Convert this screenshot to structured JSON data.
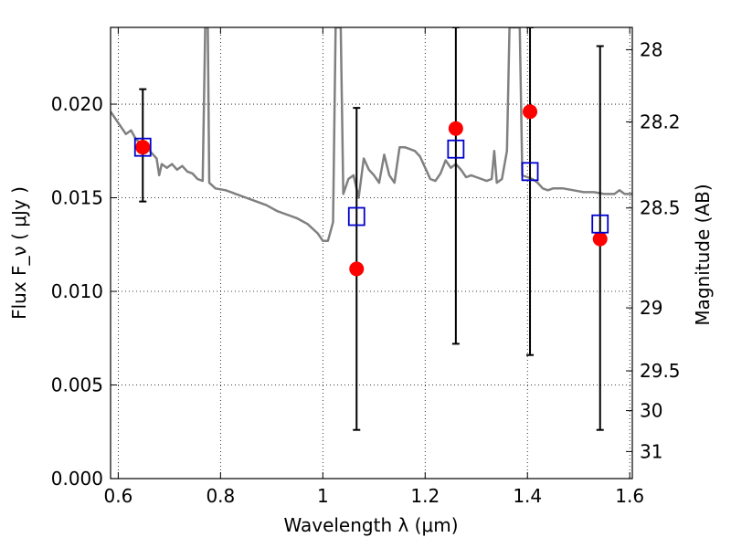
{
  "chart_data": {
    "type": "scatter",
    "xlabel": "Wavelength  λ (μm)",
    "ylabel": "Flux  F_ν  ( μJy )",
    "ylabel_right": "Magnitude (AB)",
    "xlim": [
      0.585,
      1.605
    ],
    "ylim": [
      0.0,
      0.0241
    ],
    "grid": true,
    "x_ticks": [
      {
        "value": 0.6,
        "label": "0.6"
      },
      {
        "value": 0.8,
        "label": "0.8"
      },
      {
        "value": 1.0,
        "label": "1"
      },
      {
        "value": 1.2,
        "label": "1.2"
      },
      {
        "value": 1.4,
        "label": "1.4"
      },
      {
        "value": 1.6,
        "label": "1.6"
      }
    ],
    "y_ticks": [
      {
        "value": 0.0,
        "label": "0.000"
      },
      {
        "value": 0.005,
        "label": "0.005"
      },
      {
        "value": 0.01,
        "label": "0.010"
      },
      {
        "value": 0.015,
        "label": "0.015"
      },
      {
        "value": 0.02,
        "label": "0.020"
      }
    ],
    "right_ticks": [
      {
        "mag": 28,
        "label": "28"
      },
      {
        "mag": 28.2,
        "label": "28.2"
      },
      {
        "mag": 28.5,
        "label": "28.5"
      },
      {
        "mag": 29,
        "label": "29"
      },
      {
        "mag": 29.5,
        "label": "29.5"
      },
      {
        "mag": 30,
        "label": "30"
      },
      {
        "mag": 31,
        "label": "31"
      }
    ],
    "series": [
      {
        "type": "line",
        "color": "#808080",
        "points": [
          [
            0.585,
            0.0196
          ],
          [
            0.595,
            0.0192
          ],
          [
            0.605,
            0.0188
          ],
          [
            0.615,
            0.0184
          ],
          [
            0.625,
            0.0186
          ],
          [
            0.635,
            0.0181
          ],
          [
            0.645,
            0.0179
          ],
          [
            0.655,
            0.0177
          ],
          [
            0.665,
            0.0174
          ],
          [
            0.675,
            0.0171
          ],
          [
            0.68,
            0.0162
          ],
          [
            0.685,
            0.0168
          ],
          [
            0.695,
            0.0166
          ],
          [
            0.705,
            0.0168
          ],
          [
            0.715,
            0.0165
          ],
          [
            0.725,
            0.0167
          ],
          [
            0.735,
            0.0164
          ],
          [
            0.745,
            0.0163
          ],
          [
            0.755,
            0.016
          ],
          [
            0.765,
            0.0159
          ],
          [
            0.77,
            0.0241
          ],
          [
            0.775,
            0.0241
          ],
          [
            0.778,
            0.0158
          ],
          [
            0.79,
            0.0155
          ],
          [
            0.81,
            0.0154
          ],
          [
            0.83,
            0.0152
          ],
          [
            0.85,
            0.015
          ],
          [
            0.87,
            0.0148
          ],
          [
            0.89,
            0.0146
          ],
          [
            0.91,
            0.0143
          ],
          [
            0.93,
            0.0141
          ],
          [
            0.95,
            0.0139
          ],
          [
            0.97,
            0.0136
          ],
          [
            0.99,
            0.0131
          ],
          [
            1.0,
            0.0127
          ],
          [
            1.01,
            0.0127
          ],
          [
            1.02,
            0.0137
          ],
          [
            1.025,
            0.0241
          ],
          [
            1.035,
            0.0241
          ],
          [
            1.04,
            0.0152
          ],
          [
            1.05,
            0.016
          ],
          [
            1.06,
            0.0162
          ],
          [
            1.07,
            0.015
          ],
          [
            1.08,
            0.0171
          ],
          [
            1.09,
            0.0165
          ],
          [
            1.1,
            0.0162
          ],
          [
            1.11,
            0.0158
          ],
          [
            1.12,
            0.0173
          ],
          [
            1.13,
            0.0162
          ],
          [
            1.14,
            0.0158
          ],
          [
            1.15,
            0.0177
          ],
          [
            1.16,
            0.0177
          ],
          [
            1.17,
            0.0176
          ],
          [
            1.18,
            0.0175
          ],
          [
            1.19,
            0.0172
          ],
          [
            1.2,
            0.0166
          ],
          [
            1.21,
            0.016
          ],
          [
            1.22,
            0.0159
          ],
          [
            1.23,
            0.0163
          ],
          [
            1.24,
            0.017
          ],
          [
            1.25,
            0.0166
          ],
          [
            1.26,
            0.0168
          ],
          [
            1.27,
            0.0165
          ],
          [
            1.28,
            0.0161
          ],
          [
            1.29,
            0.0162
          ],
          [
            1.3,
            0.0161
          ],
          [
            1.31,
            0.016
          ],
          [
            1.32,
            0.0159
          ],
          [
            1.33,
            0.016
          ],
          [
            1.335,
            0.0175
          ],
          [
            1.34,
            0.0158
          ],
          [
            1.35,
            0.016
          ],
          [
            1.36,
            0.0175
          ],
          [
            1.365,
            0.0241
          ],
          [
            1.385,
            0.0241
          ],
          [
            1.39,
            0.0162
          ],
          [
            1.4,
            0.0161
          ],
          [
            1.41,
            0.016
          ],
          [
            1.42,
            0.0158
          ],
          [
            1.43,
            0.0155
          ],
          [
            1.44,
            0.0154
          ],
          [
            1.45,
            0.0155
          ],
          [
            1.47,
            0.0155
          ],
          [
            1.49,
            0.0154
          ],
          [
            1.51,
            0.0153
          ],
          [
            1.53,
            0.0153
          ],
          [
            1.55,
            0.0152
          ],
          [
            1.57,
            0.0152
          ],
          [
            1.58,
            0.0154
          ],
          [
            1.59,
            0.0152
          ],
          [
            1.605,
            0.0152
          ]
        ]
      },
      {
        "type": "errorbar",
        "color": "#000000",
        "points": [
          {
            "x": 0.648,
            "low": 0.0148,
            "high": 0.0208
          },
          {
            "x": 1.066,
            "low": 0.0026,
            "high": 0.0198
          },
          {
            "x": 1.26,
            "low": 0.0072,
            "high": 0.0241
          },
          {
            "x": 1.405,
            "low": 0.0066,
            "high": 0.0241
          },
          {
            "x": 1.542,
            "low": 0.0026,
            "high": 0.0231
          }
        ]
      },
      {
        "type": "scatter",
        "marker": "circle",
        "color": "#ff0000",
        "points": [
          [
            0.648,
            0.0177
          ],
          [
            1.066,
            0.0112
          ],
          [
            1.26,
            0.0187
          ],
          [
            1.405,
            0.0196
          ],
          [
            1.542,
            0.0128
          ]
        ]
      },
      {
        "type": "scatter",
        "marker": "square-open",
        "color": "#0000cc",
        "points": [
          [
            0.648,
            0.0177
          ],
          [
            1.066,
            0.014
          ],
          [
            1.26,
            0.0176
          ],
          [
            1.405,
            0.0164
          ],
          [
            1.542,
            0.0136
          ]
        ]
      }
    ]
  }
}
